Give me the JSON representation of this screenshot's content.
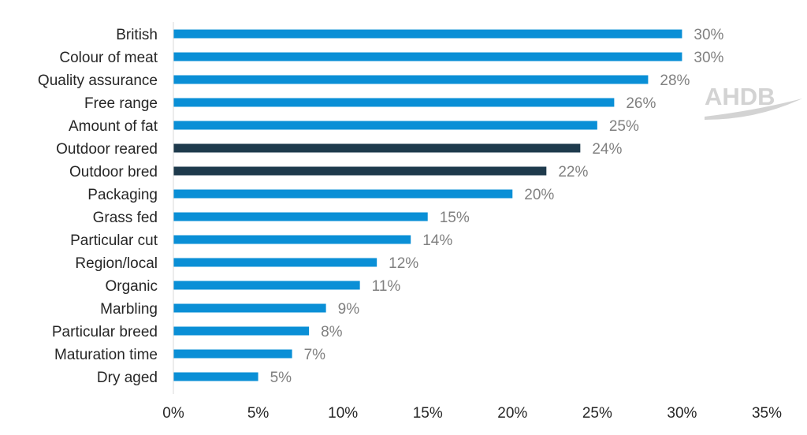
{
  "chart_data": {
    "type": "bar",
    "orientation": "horizontal",
    "title": "",
    "xlabel": "",
    "ylabel": "",
    "xlim": [
      0,
      35
    ],
    "xticks": [
      0,
      5,
      10,
      15,
      20,
      25,
      30,
      35
    ],
    "tick_suffix": "%",
    "grid": false,
    "legend": "none",
    "categories": [
      "British",
      "Colour of meat",
      "Quality assurance",
      "Free range",
      "Amount of fat",
      "Outdoor reared",
      "Outdoor bred",
      "Packaging",
      "Grass fed",
      "Particular cut",
      "Region/local",
      "Organic",
      "Marbling",
      "Particular breed",
      "Maturation time",
      "Dry aged"
    ],
    "values": [
      30,
      30,
      28,
      26,
      25,
      24,
      22,
      20,
      15,
      14,
      12,
      11,
      9,
      8,
      7,
      5
    ],
    "value_labels": [
      "30%",
      "30%",
      "28%",
      "26%",
      "25%",
      "24%",
      "22%",
      "20%",
      "15%",
      "14%",
      "12%",
      "11%",
      "9%",
      "8%",
      "7%",
      "5%"
    ],
    "highlighted": [
      "Outdoor reared",
      "Outdoor bred"
    ],
    "colors": {
      "bar": "#0a8fd6",
      "highlight": "#1e3a4c",
      "value_label": "#808080",
      "text": "#262626",
      "axis": "#d9d9d9"
    }
  },
  "logo": {
    "text": "AHDB",
    "color": "#d3d3d3"
  }
}
